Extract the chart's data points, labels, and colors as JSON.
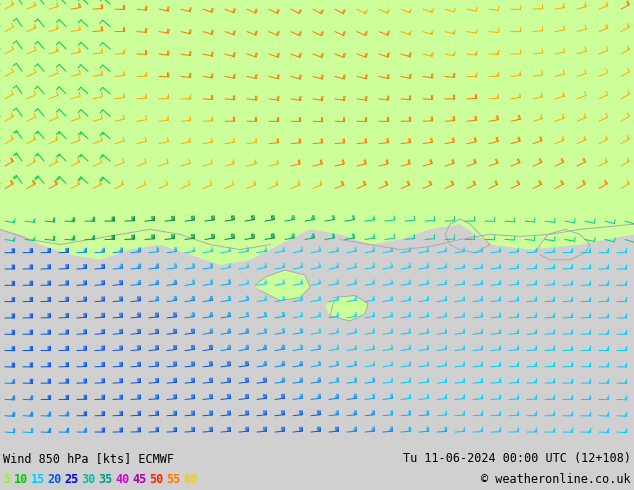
{
  "title_left": "Wind 850 hPa [kts] ECMWF",
  "title_right": "Tu 11-06-2024 00:00 UTC (12+108)",
  "copyright": "© weatheronline.co.uk",
  "legend_values": [
    "5",
    "10",
    "15",
    "20",
    "25",
    "30",
    "35",
    "40",
    "45",
    "50",
    "55",
    "60"
  ],
  "legend_colors": [
    "#88ff00",
    "#00cc00",
    "#00ccff",
    "#0055ff",
    "#0000dd",
    "#00bbaa",
    "#009988",
    "#dd00dd",
    "#aa00aa",
    "#ff2200",
    "#ff7700",
    "#ffcc00"
  ],
  "bg_land_color": "#ccff99",
  "bg_sea_color": "#e8e8e8",
  "island_color": "#ccff99",
  "fig_width": 6.34,
  "fig_height": 4.9,
  "dpi": 100,
  "bottom_bar_color": "#d0d0d0",
  "text_color": "#000000",
  "title_fontsize": 8.5,
  "legend_fontsize": 8.5,
  "sea_barb_color_main": "#00aacc",
  "land_barb_color": "#ffcc00",
  "barb_lw": 0.6
}
